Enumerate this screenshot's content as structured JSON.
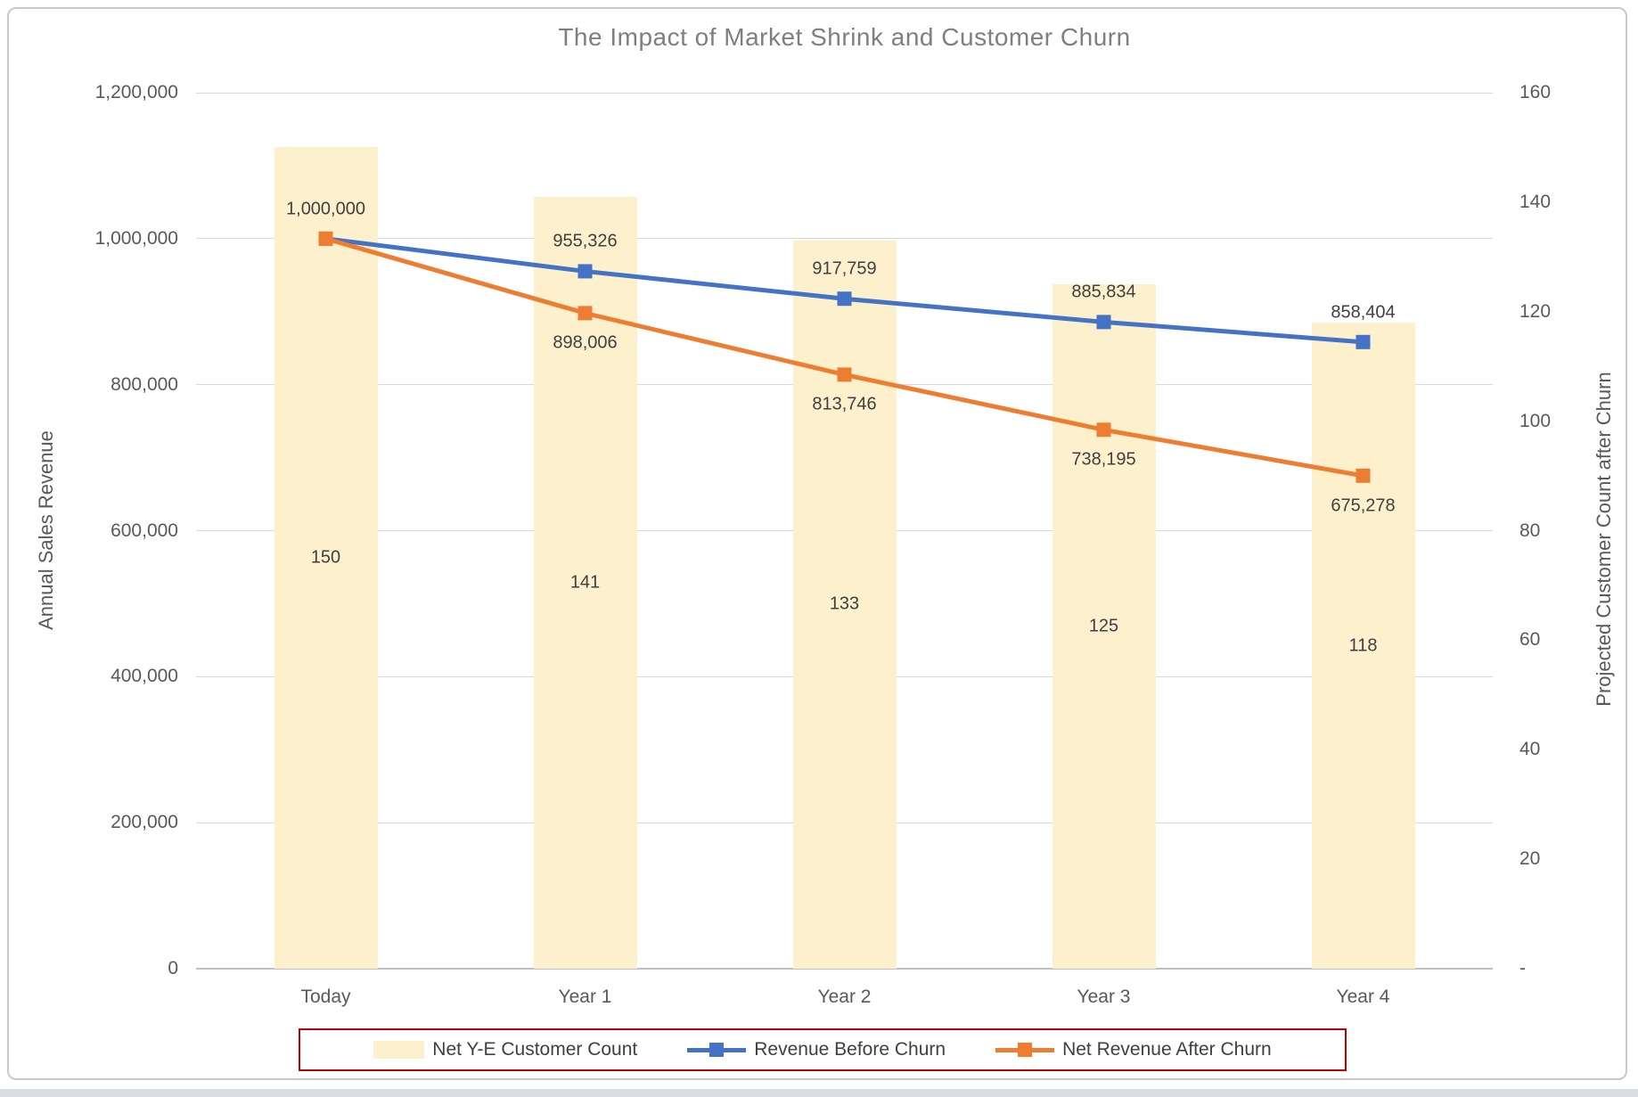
{
  "chart_data": {
    "type": "combo",
    "title": "The Impact of Market Shrink and Customer Churn",
    "categories": [
      "Today",
      "Year 1",
      "Year 2",
      "Year 3",
      "Year 4"
    ],
    "series": [
      {
        "name": "Net Y-E Customer Count",
        "type": "bar",
        "axis": "right",
        "color": "#FDF0CC",
        "values": [
          150,
          141,
          133,
          125,
          118
        ],
        "labels": [
          "150",
          "141",
          "133",
          "125",
          "118"
        ]
      },
      {
        "name": "Revenue Before Churn",
        "type": "line",
        "axis": "left",
        "color": "#4472C4",
        "values": [
          1000000,
          955326,
          917759,
          885834,
          858404
        ],
        "labels": [
          "1,000,000",
          "955,326",
          "917,759",
          "885,834",
          "858,404"
        ],
        "label_position": "above"
      },
      {
        "name": "Net Revenue After Churn",
        "type": "line",
        "axis": "left",
        "color": "#ED7D31",
        "values": [
          1000000,
          898006,
          813746,
          738195,
          675278
        ],
        "labels": [
          null,
          "898,006",
          "813,746",
          "738,195",
          "675,278"
        ],
        "label_position": "below"
      }
    ],
    "left_axis": {
      "title": "Annual Sales Revenue",
      "min": 0,
      "max": 1200000,
      "tick_step": 200000,
      "tick_labels": [
        "1,200,000",
        "1,000,000",
        "800,000",
        "600,000",
        "400,000",
        "200,000",
        "0"
      ]
    },
    "right_axis": {
      "title": "Projected Customer Count after Churn",
      "min": 0,
      "max": 160,
      "tick_step": 20,
      "tick_labels": [
        "160",
        "140",
        "120",
        "100",
        "80",
        "60",
        "40",
        "20",
        "-"
      ]
    },
    "gridlines": true,
    "legend_position": "bottom"
  },
  "style": {
    "gridline_color": "#D9D9D9",
    "axis_line_color": "#BFBFBF",
    "title_color": "#7F7F7F",
    "tick_color": "#595959",
    "data_label_color": "#404040",
    "legend_border_color": "#C00000",
    "frame_border_color": "#C9C9C9"
  }
}
